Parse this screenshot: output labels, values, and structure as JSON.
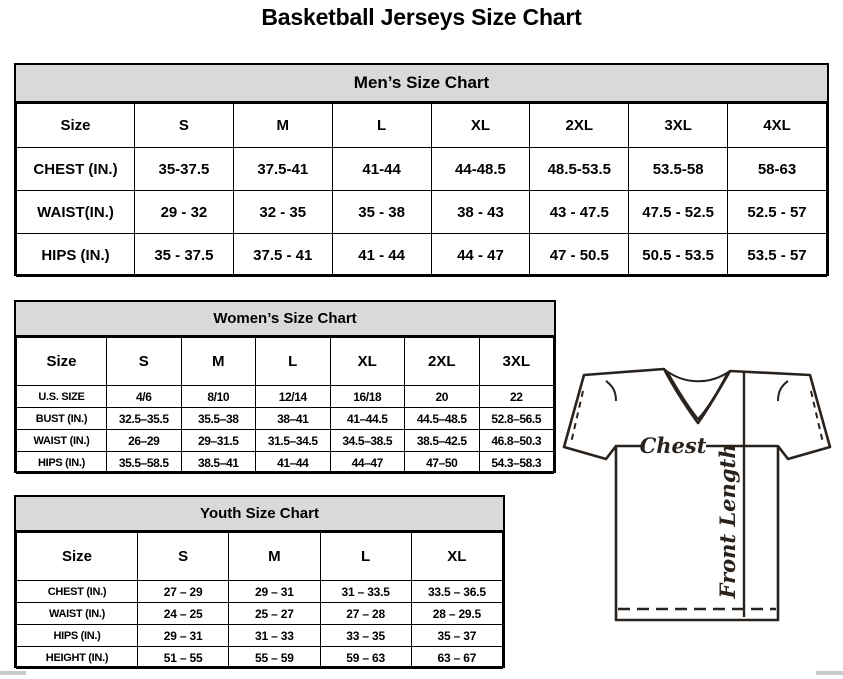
{
  "page": {
    "title": "Basketball Jerseys Size Chart"
  },
  "tables": {
    "men": {
      "title": "Men’s Size Chart",
      "columns": [
        "Size",
        "S",
        "M",
        "L",
        "XL",
        "2XL",
        "3XL",
        "4XL"
      ],
      "rows": [
        {
          "label": "CHEST (IN.)",
          "cells": [
            "35-37.5",
            "37.5-41",
            "41-44",
            "44-48.5",
            "48.5-53.5",
            "53.5-58",
            "58-63"
          ]
        },
        {
          "label": "WAIST(IN.)",
          "cells": [
            "29 - 32",
            "32 - 35",
            "35 - 38",
            "38 - 43",
            "43 - 47.5",
            "47.5 - 52.5",
            "52.5 - 57"
          ]
        },
        {
          "label": "HIPS (IN.)",
          "cells": [
            "35 - 37.5",
            "37.5 - 41",
            "41 - 44",
            "44 - 47",
            "47 - 50.5",
            "50.5 - 53.5",
            "53.5 - 57"
          ]
        }
      ]
    },
    "women": {
      "title": "Women’s Size Chart",
      "columns": [
        "Size",
        "S",
        "M",
        "L",
        "XL",
        "2XL",
        "3XL"
      ],
      "rows": [
        {
          "label": "U.S. SIZE",
          "cells": [
            "4/6",
            "8/10",
            "12/14",
            "16/18",
            "20",
            "22"
          ]
        },
        {
          "label": "BUST (IN.)",
          "cells": [
            "32.5–35.5",
            "35.5–38",
            "38–41",
            "41–44.5",
            "44.5–48.5",
            "52.8–56.5"
          ]
        },
        {
          "label": "WAIST (IN.)",
          "cells": [
            "26–29",
            "29–31.5",
            "31.5–34.5",
            "34.5–38.5",
            "38.5–42.5",
            "46.8–50.3"
          ]
        },
        {
          "label": "HIPS (IN.)",
          "cells": [
            "35.5–58.5",
            "38.5–41",
            "41–44",
            "44–47",
            "47–50",
            "54.3–58.3"
          ]
        }
      ]
    },
    "youth": {
      "title": "Youth Size Chart",
      "columns": [
        "Size",
        "S",
        "M",
        "L",
        "XL"
      ],
      "rows": [
        {
          "label": "CHEST (IN.)",
          "cells": [
            "27 – 29",
            "29 – 31",
            "31 – 33.5",
            "33.5 – 36.5"
          ]
        },
        {
          "label": "WAIST (IN.)",
          "cells": [
            "24 – 25",
            "25 – 27",
            "27 – 28",
            "28 – 29.5"
          ]
        },
        {
          "label": "HIPS (IN.)",
          "cells": [
            "29 – 31",
            "31 – 33",
            "33 – 35",
            "35 – 37"
          ]
        },
        {
          "label": "HEIGHT (IN.)",
          "cells": [
            "51 – 55",
            "55 – 59",
            "59 – 63",
            "63 – 67"
          ]
        }
      ]
    }
  },
  "diagram": {
    "chest_label": "Chest",
    "front_length_label": "Front Length"
  },
  "colors": {
    "band_background": "#d9d9d9",
    "table_border": "#000000",
    "diagram_stroke": "#29221d"
  }
}
